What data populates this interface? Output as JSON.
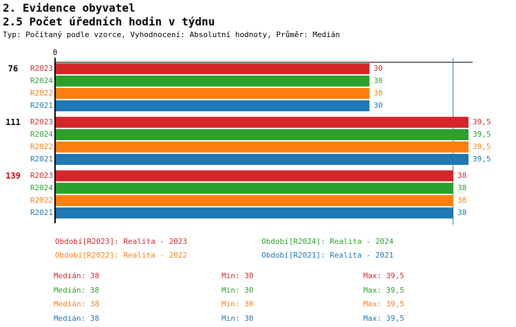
{
  "title_line1": "2. Evidence obyvatel",
  "title_line2": "2.5 Počet úředních hodin v týdnu",
  "subtitle": "Typ: Počítaný podle vzorce, Vyhodnocení: Absolutní hodnoty, Průměr: Medián",
  "colors": {
    "R2023": "#d62728",
    "R2024": "#2ca02c",
    "R2022": "#ff7f0e",
    "R2021": "#1f77b4",
    "axis": "#000000",
    "median_line": "#1f77b4",
    "highlight_group": "#e00000",
    "group_label": "#000000"
  },
  "chart_data": {
    "type": "bar",
    "orientation": "horizontal",
    "title": "2.5 Počet úředních hodin v týdnu",
    "xlabel": "",
    "ylabel": "",
    "xlim": [
      0,
      40
    ],
    "x_tick_label": "0",
    "grid": false,
    "median_reference_line": 38,
    "series_order": [
      "R2023",
      "R2024",
      "R2022",
      "R2021"
    ],
    "groups": [
      {
        "label": "76",
        "highlighted": false,
        "bars": [
          {
            "series": "R2023",
            "value": 30,
            "value_label": "30"
          },
          {
            "series": "R2024",
            "value": 30,
            "value_label": "30"
          },
          {
            "series": "R2022",
            "value": 30,
            "value_label": "30"
          },
          {
            "series": "R2021",
            "value": 30,
            "value_label": "30"
          }
        ]
      },
      {
        "label": "111",
        "highlighted": false,
        "bars": [
          {
            "series": "R2023",
            "value": 39.5,
            "value_label": "39,5"
          },
          {
            "series": "R2024",
            "value": 39.5,
            "value_label": "39,5"
          },
          {
            "series": "R2022",
            "value": 39.5,
            "value_label": "39,5"
          },
          {
            "series": "R2021",
            "value": 39.5,
            "value_label": "39,5"
          }
        ]
      },
      {
        "label": "139",
        "highlighted": true,
        "bars": [
          {
            "series": "R2023",
            "value": 38,
            "value_label": "38"
          },
          {
            "series": "R2024",
            "value": 38,
            "value_label": "38"
          },
          {
            "series": "R2022",
            "value": 38,
            "value_label": "38"
          },
          {
            "series": "R2021",
            "value": 38,
            "value_label": "38"
          }
        ]
      }
    ],
    "legend_position": "bottom"
  },
  "legend": [
    {
      "series": "R2023",
      "label": "Období[R2023]: Realita - 2023"
    },
    {
      "series": "R2024",
      "label": "Období[R2024]: Realita - 2024"
    },
    {
      "series": "R2022",
      "label": "Období[R2022]: Realita - 2022"
    },
    {
      "series": "R2021",
      "label": "Období[R2021]: Realita - 2021"
    }
  ],
  "stats": [
    {
      "series": "R2023",
      "median": "Medián: 38",
      "min": "Min: 30",
      "max": "Max: 39,5"
    },
    {
      "series": "R2024",
      "median": "Medián: 38",
      "min": "Min: 30",
      "max": "Max: 39,5"
    },
    {
      "series": "R2022",
      "median": "Medián: 38",
      "min": "Min: 30",
      "max": "Max: 39,5"
    },
    {
      "series": "R2021",
      "median": "Medián: 38",
      "min": "Min: 30",
      "max": "Max: 39,5"
    }
  ]
}
